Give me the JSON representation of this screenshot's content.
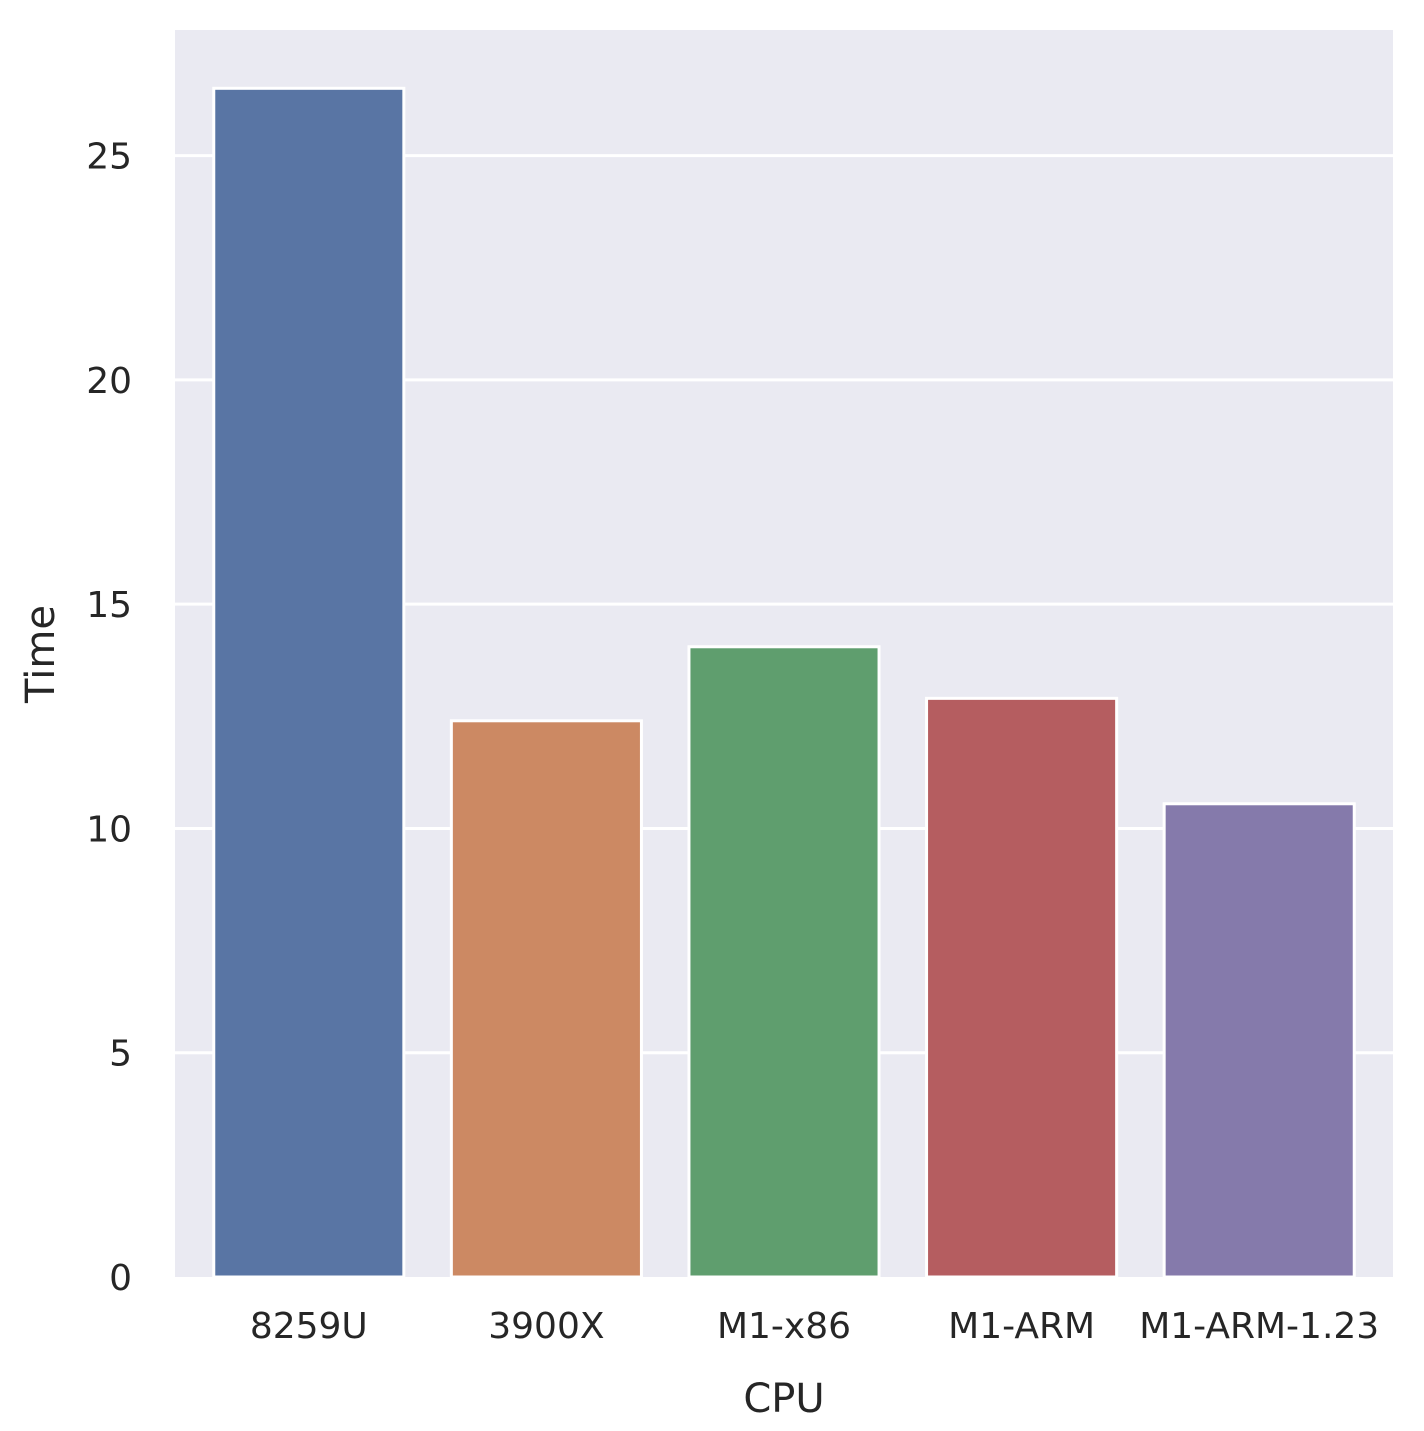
{
  "chart_data": {
    "type": "bar",
    "xlabel": "CPU",
    "ylabel": "Time",
    "categories": [
      "8259U",
      "3900X",
      "M1-x86",
      "M1-ARM",
      "M1-ARM-1.23"
    ],
    "values": [
      26.5,
      12.4,
      14.05,
      12.9,
      10.55
    ],
    "colors": [
      "#5975a4",
      "#cc8963",
      "#5f9e6e",
      "#b55d60",
      "#857aab"
    ],
    "ylim": [
      0,
      27.8
    ],
    "yticks": [
      "0",
      "5",
      "10",
      "15",
      "20",
      "25"
    ],
    "grid": true,
    "background": "#eaeaf2",
    "gridline_color": "#ffffff",
    "legend": "none"
  }
}
